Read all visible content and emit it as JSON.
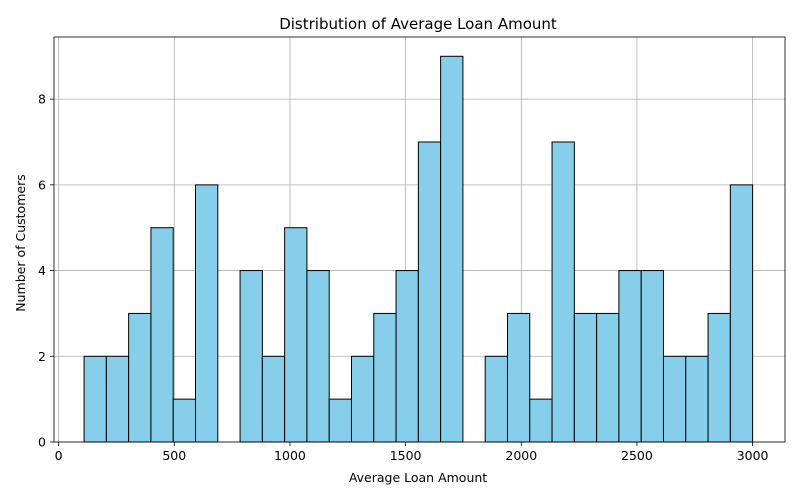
{
  "chart_data": {
    "type": "bar",
    "title": "Distribution of Average Loan Amount",
    "xlabel": "Average Loan Amount",
    "ylabel": "Number of Customers",
    "xlim": [
      -20,
      3140
    ],
    "ylim": [
      0,
      9.45
    ],
    "xticks": [
      0,
      500,
      1000,
      1500,
      2000,
      2500,
      3000
    ],
    "yticks": [
      0,
      2,
      4,
      6,
      8
    ],
    "grid": true,
    "bar_color": "#87ceeb",
    "edge_color": "#000000",
    "bin_start": 110,
    "bin_width": 96.333,
    "bins": 30,
    "values": [
      2,
      2,
      3,
      5,
      1,
      6,
      0,
      4,
      2,
      5,
      4,
      1,
      2,
      3,
      4,
      7,
      9,
      0,
      2,
      3,
      1,
      7,
      3,
      3,
      4,
      4,
      2,
      2,
      3,
      6
    ]
  }
}
